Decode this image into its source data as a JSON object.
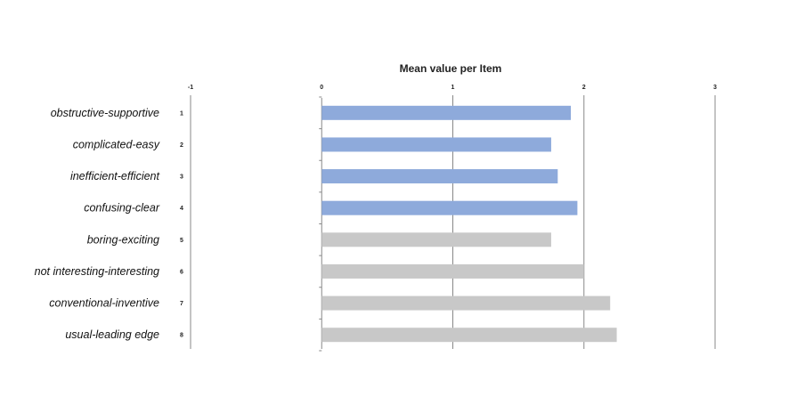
{
  "chart_data": {
    "type": "bar",
    "orientation": "horizontal",
    "title": "Mean value per Item",
    "xlabel": "",
    "ylabel": "",
    "xlim": [
      -1,
      3
    ],
    "x_ticks": [
      "-1",
      "0",
      "1",
      "2",
      "3"
    ],
    "grid": true,
    "categories": [
      "obstructive-supportive",
      "complicated-easy",
      "inefficient-efficient",
      "confusing-clear",
      "boring-exciting",
      "not interesting-interesting",
      "conventional-inventive",
      "usual-leading edge"
    ],
    "item_numbers": [
      "1",
      "2",
      "3",
      "4",
      "5",
      "6",
      "7",
      "8"
    ],
    "values": [
      1.9,
      1.75,
      1.8,
      1.95,
      1.75,
      2.0,
      2.2,
      2.25
    ],
    "bar_colors": [
      "#8eaadb",
      "#8eaadb",
      "#8eaadb",
      "#8eaadb",
      "#c8c8c8",
      "#c8c8c8",
      "#c8c8c8",
      "#c8c8c8"
    ],
    "axis_color": "#888888"
  }
}
